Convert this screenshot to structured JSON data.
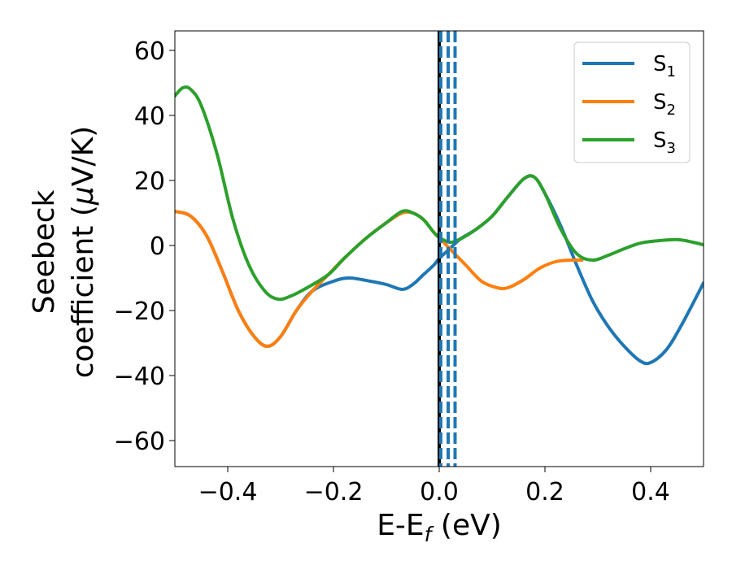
{
  "chart_data": {
    "type": "line",
    "xlabel": {
      "main": "E-E",
      "sub": "f",
      "tail": " (eV)"
    },
    "ylabel": {
      "line1": "Seebeck",
      "line2_pre": "coefficient  (",
      "mu": "μ",
      "line2_post": "V/K)"
    },
    "xlim": [
      -0.5,
      0.5
    ],
    "ylim": [
      -68,
      66
    ],
    "xticks": [
      -0.4,
      -0.2,
      0.0,
      0.2,
      0.4
    ],
    "xtick_labels": [
      "−0.4",
      "−0.2",
      "0.0",
      "0.2",
      "0.4"
    ],
    "yticks": [
      -60,
      -40,
      -20,
      0,
      20,
      40,
      60
    ],
    "ytick_labels": [
      "−60",
      "−40",
      "−20",
      "0",
      "20",
      "40",
      "60"
    ],
    "grid": false,
    "legend_position": "top-right",
    "vertical_lines": [
      {
        "x": 0.0,
        "style": "solid",
        "color": "#000000"
      },
      {
        "x": 0.003,
        "style": "dashed",
        "color": "#1f77b4"
      },
      {
        "x": 0.017,
        "style": "dashed",
        "color": "#1f77b4"
      },
      {
        "x": 0.03,
        "style": "dashed",
        "color": "#1f77b4"
      }
    ],
    "series": [
      {
        "name": "S",
        "sub": "1",
        "color": "#1f77b4",
        "points": [
          [
            -0.5,
            10.5
          ],
          [
            -0.47,
            9
          ],
          [
            -0.44,
            3
          ],
          [
            -0.41,
            -8
          ],
          [
            -0.38,
            -20
          ],
          [
            -0.35,
            -28
          ],
          [
            -0.325,
            -31
          ],
          [
            -0.3,
            -28
          ],
          [
            -0.27,
            -20
          ],
          [
            -0.24,
            -14
          ],
          [
            -0.2,
            -11
          ],
          [
            -0.17,
            -10
          ],
          [
            -0.13,
            -11
          ],
          [
            -0.1,
            -12
          ],
          [
            -0.07,
            -13.5
          ],
          [
            -0.05,
            -12
          ],
          [
            -0.03,
            -9
          ],
          [
            -0.01,
            -6
          ],
          [
            0.0,
            -4
          ],
          [
            0.02,
            -1
          ],
          [
            0.04,
            2
          ],
          [
            0.07,
            5
          ],
          [
            0.1,
            9
          ],
          [
            0.13,
            15
          ],
          [
            0.16,
            20.5
          ],
          [
            0.18,
            21
          ],
          [
            0.2,
            16
          ],
          [
            0.23,
            6
          ],
          [
            0.26,
            -6
          ],
          [
            0.29,
            -17
          ],
          [
            0.32,
            -25
          ],
          [
            0.35,
            -31
          ],
          [
            0.38,
            -35.5
          ],
          [
            0.4,
            -36
          ],
          [
            0.43,
            -32
          ],
          [
            0.46,
            -24
          ],
          [
            0.5,
            -11.5
          ]
        ]
      },
      {
        "name": "S",
        "sub": "2",
        "color": "#ff7f0e",
        "points": [
          [
            -0.5,
            10.5
          ],
          [
            -0.47,
            9
          ],
          [
            -0.44,
            3
          ],
          [
            -0.41,
            -8
          ],
          [
            -0.38,
            -20
          ],
          [
            -0.35,
            -28
          ],
          [
            -0.325,
            -31
          ],
          [
            -0.3,
            -28
          ],
          [
            -0.27,
            -20
          ],
          [
            -0.24,
            -14
          ],
          [
            -0.21,
            -9
          ],
          [
            -0.18,
            -4
          ],
          [
            -0.14,
            2
          ],
          [
            -0.1,
            7
          ],
          [
            -0.07,
            10
          ],
          [
            -0.05,
            10
          ],
          [
            -0.03,
            8
          ],
          [
            -0.01,
            4
          ],
          [
            0.0,
            2.5
          ],
          [
            0.02,
            -1
          ],
          [
            0.05,
            -6
          ],
          [
            0.08,
            -11
          ],
          [
            0.11,
            -13
          ],
          [
            0.13,
            -13
          ],
          [
            0.16,
            -10.5
          ],
          [
            0.19,
            -7
          ],
          [
            0.22,
            -5
          ],
          [
            0.25,
            -4.5
          ],
          [
            0.27,
            -4.5
          ]
        ]
      },
      {
        "name": "S",
        "sub": "3",
        "color": "#2ca02c",
        "points": [
          [
            -0.5,
            46
          ],
          [
            -0.485,
            48.5
          ],
          [
            -0.47,
            48
          ],
          [
            -0.45,
            43
          ],
          [
            -0.42,
            28
          ],
          [
            -0.39,
            8
          ],
          [
            -0.36,
            -6
          ],
          [
            -0.33,
            -14
          ],
          [
            -0.305,
            -16.5
          ],
          [
            -0.28,
            -15.5
          ],
          [
            -0.25,
            -13
          ],
          [
            -0.21,
            -9
          ],
          [
            -0.18,
            -4
          ],
          [
            -0.14,
            2
          ],
          [
            -0.1,
            7
          ],
          [
            -0.07,
            10.5
          ],
          [
            -0.05,
            10
          ],
          [
            -0.03,
            8
          ],
          [
            -0.01,
            4
          ],
          [
            0.0,
            2.5
          ],
          [
            0.02,
            1
          ],
          [
            0.04,
            2
          ],
          [
            0.07,
            5
          ],
          [
            0.1,
            9
          ],
          [
            0.13,
            15
          ],
          [
            0.16,
            20.5
          ],
          [
            0.18,
            21
          ],
          [
            0.2,
            16
          ],
          [
            0.23,
            5
          ],
          [
            0.26,
            -2.5
          ],
          [
            0.29,
            -4.5
          ],
          [
            0.32,
            -3
          ],
          [
            0.35,
            -1
          ],
          [
            0.38,
            0.7
          ],
          [
            0.41,
            1.4
          ],
          [
            0.45,
            1.8
          ],
          [
            0.48,
            1
          ],
          [
            0.5,
            0.2
          ]
        ]
      }
    ]
  }
}
